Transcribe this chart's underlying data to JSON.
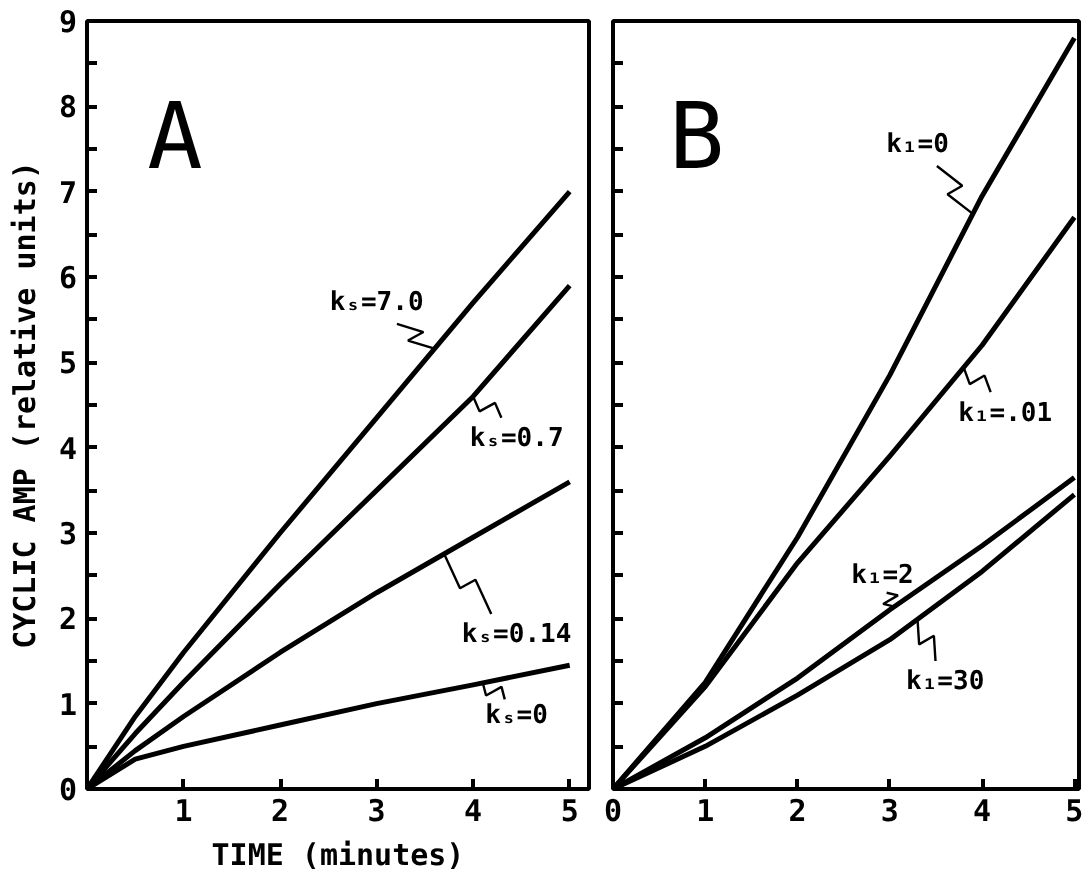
{
  "chart_data": [
    {
      "type": "line",
      "title": "A",
      "xlabel": "TIME (minutes)",
      "ylabel": "CYCLIC AMP (relative units)",
      "xlim": [
        0,
        5.2
      ],
      "ylim": [
        0,
        9
      ],
      "xticks": [
        {
          "value": 0,
          "label": null
        },
        1,
        2,
        3,
        4,
        5
      ],
      "yticks": [
        0,
        {
          "value": 0.5,
          "label": null
        },
        1,
        {
          "value": 1.5,
          "label": null
        },
        2,
        {
          "value": 2.5,
          "label": null
        },
        3,
        {
          "value": 3.5,
          "label": null
        },
        4,
        {
          "value": 4.5,
          "label": null
        },
        5,
        {
          "value": 5.5,
          "label": null
        },
        6,
        {
          "value": 6.5,
          "label": null
        },
        7,
        {
          "value": 7.5,
          "label": null
        },
        8,
        {
          "value": 8.5,
          "label": null
        },
        9
      ],
      "grid": false,
      "legend": "right",
      "marker": "none",
      "line_style": "solid",
      "x": [
        0,
        0.5,
        1,
        2,
        3,
        4,
        5
      ],
      "series": [
        {
          "name": "kₛ=7.0",
          "color": "#000000",
          "values": [
            0,
            0.85,
            1.6,
            3.0,
            4.35,
            5.7,
            7.0
          ]
        },
        {
          "name": "kₛ=0.7",
          "color": "#000000",
          "values": [
            0,
            0.65,
            1.25,
            2.4,
            3.5,
            4.6,
            5.9
          ]
        },
        {
          "name": "kₛ=0.14",
          "color": "#000000",
          "values": [
            0,
            0.45,
            0.85,
            1.6,
            2.3,
            2.95,
            3.6
          ]
        },
        {
          "name": "kₛ=0",
          "color": "#000000",
          "values": [
            0,
            0.35,
            0.5,
            0.75,
            1.0,
            1.22,
            1.45
          ]
        }
      ]
    },
    {
      "type": "line",
      "title": "B",
      "xlim": [
        0,
        5.05
      ],
      "ylim": [
        0,
        9
      ],
      "tick_labels": "x",
      "xticks": [
        0,
        1,
        2,
        3,
        4,
        5
      ],
      "yticks": [
        {
          "value": 0,
          "label": null
        },
        {
          "value": 0.5,
          "label": null
        },
        {
          "value": 1,
          "label": null
        },
        {
          "value": 1.5,
          "label": null
        },
        {
          "value": 2,
          "label": null
        },
        {
          "value": 2.5,
          "label": null
        },
        {
          "value": 3,
          "label": null
        },
        {
          "value": 3.5,
          "label": null
        },
        {
          "value": 4,
          "label": null
        },
        {
          "value": 4.5,
          "label": null
        },
        {
          "value": 5,
          "label": null
        },
        {
          "value": 5.5,
          "label": null
        },
        {
          "value": 6,
          "label": null
        },
        {
          "value": 6.5,
          "label": null
        },
        {
          "value": 7,
          "label": null
        },
        {
          "value": 7.5,
          "label": null
        },
        {
          "value": 8,
          "label": null
        },
        {
          "value": 8.5,
          "label": null
        },
        {
          "value": 9,
          "label": null
        }
      ],
      "grid": false,
      "legend": "right",
      "marker": "none",
      "line_style": "solid",
      "x": [
        0,
        1,
        2,
        3,
        4,
        5
      ],
      "series": [
        {
          "name": "k₁=0",
          "color": "#000000",
          "values": [
            0,
            1.25,
            2.95,
            4.85,
            6.95,
            8.8
          ]
        },
        {
          "name": "k₁=.01",
          "color": "#000000",
          "values": [
            0,
            1.2,
            2.65,
            3.9,
            5.2,
            6.7
          ]
        },
        {
          "name": "k₁=2",
          "color": "#000000",
          "values": [
            0,
            0.6,
            1.3,
            2.1,
            2.85,
            3.65
          ]
        },
        {
          "name": "k₁=30",
          "color": "#000000",
          "values": [
            0,
            0.5,
            1.1,
            1.75,
            2.55,
            3.45
          ]
        }
      ]
    }
  ]
}
